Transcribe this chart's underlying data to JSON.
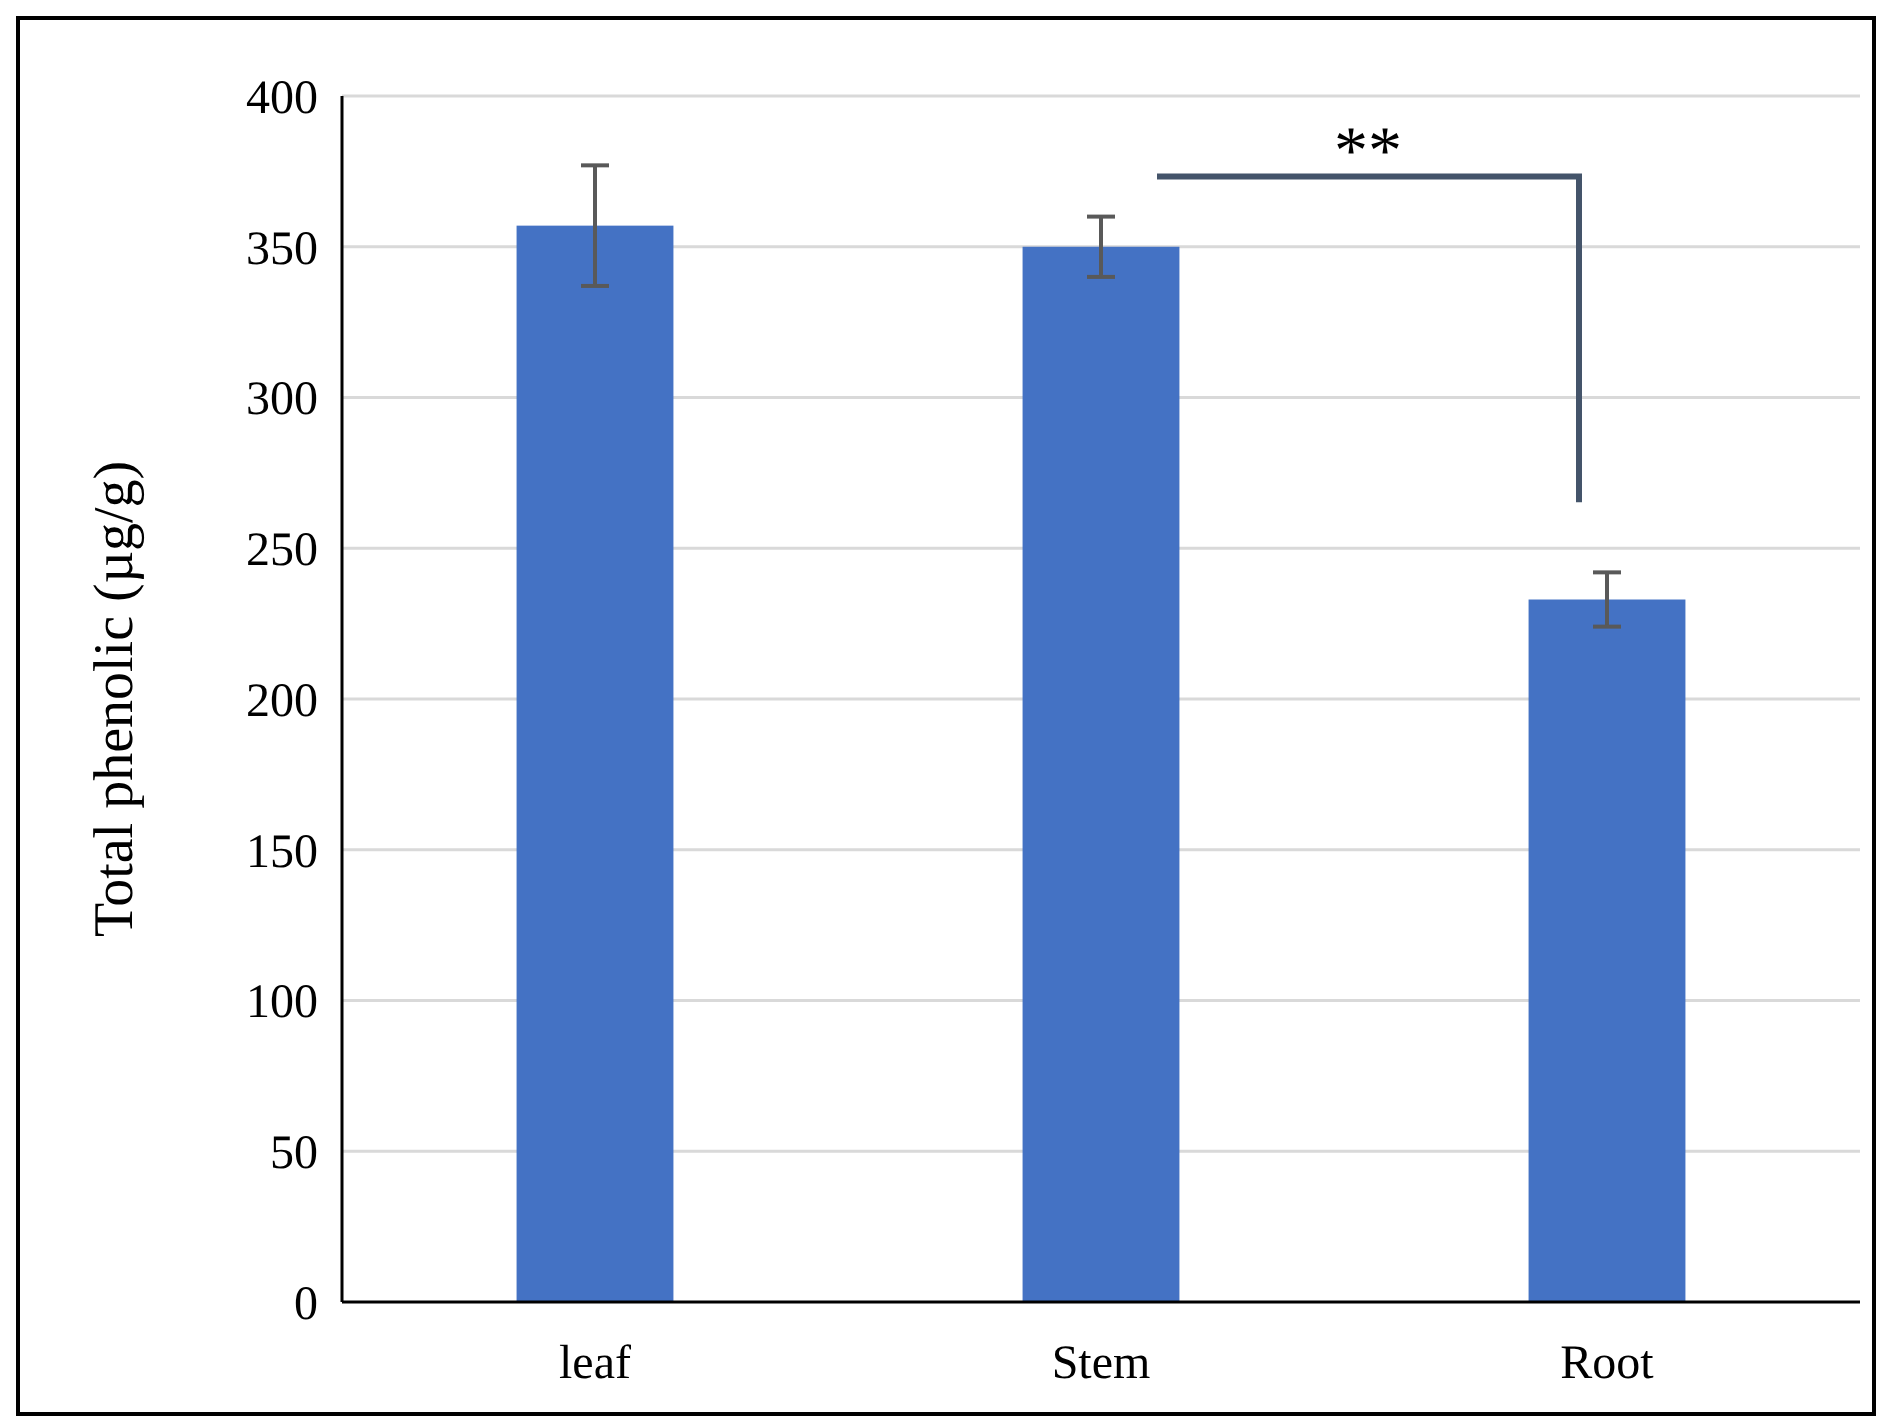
{
  "chart_data": {
    "type": "bar",
    "ylabel": "Total phenolic (µg/g)",
    "categories": [
      "leaf",
      "Stem",
      "Root"
    ],
    "values": [
      357,
      350,
      233
    ],
    "color": "#4472c4",
    "errors": [
      20,
      10,
      9
    ],
    "ylim": [
      0,
      400
    ],
    "yticks": [
      0,
      50,
      100,
      150,
      200,
      250,
      300,
      350,
      400
    ],
    "grid": "y",
    "annotations": [
      "**"
    ]
  }
}
